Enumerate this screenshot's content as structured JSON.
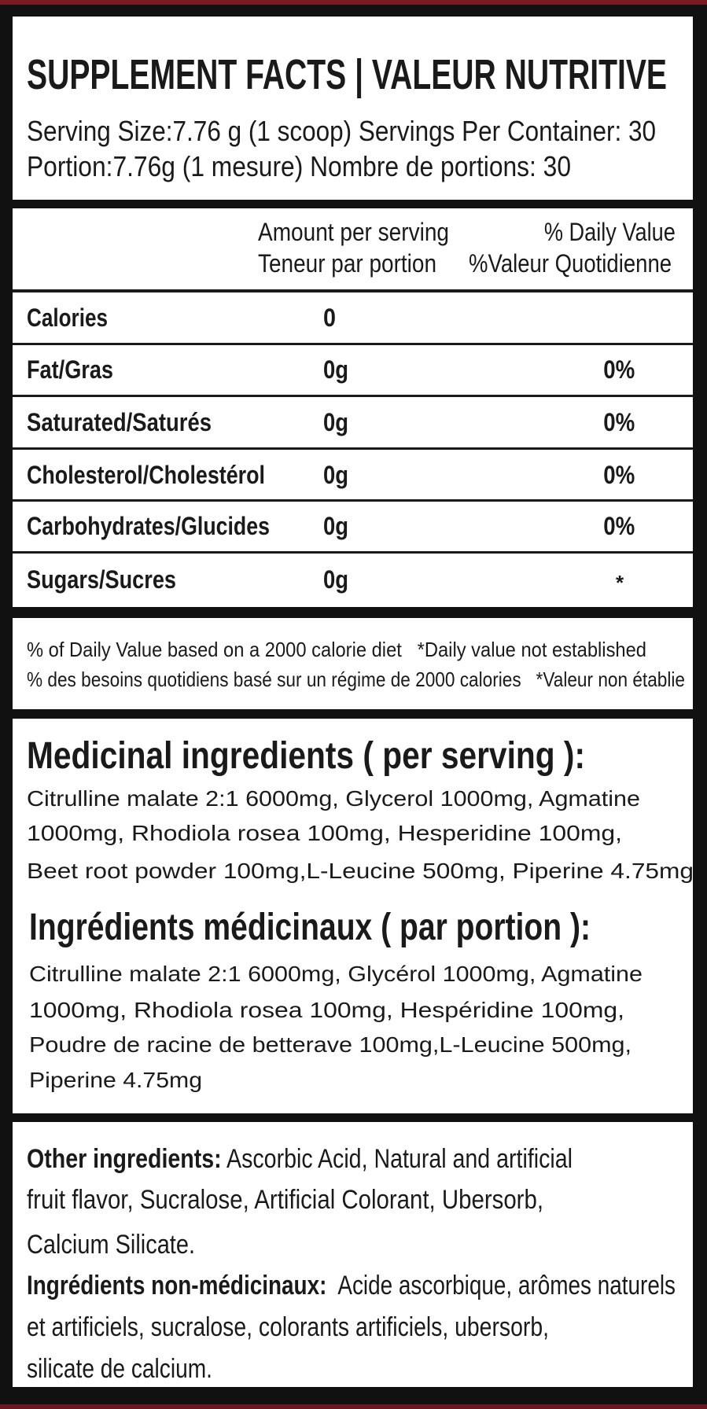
{
  "header": {
    "title": "SUPPLEMENT FACTS | VALEUR NUTRITIVE",
    "serving_en": "Serving Size:7.76 g (1 scoop) Servings Per Container: 30",
    "serving_fr": "Portion:7.76g (1 mesure) Nombre de portions: 30"
  },
  "table": {
    "amount_header_en": "Amount per serving",
    "amount_header_fr": "Teneur par portion",
    "dv_header_en": "% Daily Value",
    "dv_header_fr": "%Valeur Quotidienne",
    "rows": [
      {
        "name": "Calories",
        "amount": "0",
        "dv": ""
      },
      {
        "name": "Fat/Gras",
        "amount": "0g",
        "dv": "0%"
      },
      {
        "name": "Saturated/Saturés",
        "amount": "0g",
        "dv": "0%"
      },
      {
        "name": "Cholesterol/Cholestérol",
        "amount": "0g",
        "dv": "0%"
      },
      {
        "name": "Carbohydrates/Glucides",
        "amount": "0g",
        "dv": "0%"
      },
      {
        "name": "Sugars/Sucres",
        "amount": "0g",
        "dv": "*"
      }
    ]
  },
  "footnote": {
    "en": "% of Daily Value based on a 2000 calorie diet   *Daily value not established",
    "fr": "% des besoins quotidiens basé sur un régime de 2000 calories   *Valeur non établie"
  },
  "medicinal": {
    "heading_en": "Medicinal ingredients ( per serving ):",
    "lines_en": [
      "Citrulline malate 2:1 6000mg, Glycerol 1000mg, Agmatine",
      "1000mg, Rhodiola rosea 100mg, Hesperidine 100mg,",
      "Beet root powder 100mg,L-Leucine 500mg, Piperine 4.75mg"
    ],
    "heading_fr": "Ingrédients médicinaux ( par portion ):",
    "lines_fr": [
      "Citrulline malate 2:1 6000mg, Glycérol 1000mg, Agmatine",
      "1000mg, Rhodiola rosea 100mg, Hespéridine 100mg,",
      "Poudre de racine de betterave 100mg,L-Leucine 500mg,",
      "Piperine 4.75mg"
    ]
  },
  "other": {
    "label_en": "Other ingredients:",
    "lines_en": [
      " Ascorbic Acid, Natural and artificial",
      "fruit flavor, Sucralose, Artificial Colorant, Ubersorb,",
      "Calcium Silicate."
    ],
    "label_fr": "Ingrédients non-médicinaux:",
    "lines_fr": [
      "  Acide ascorbique, arômes naturels",
      "et artificiels, sucralose, colorants artificiels, ubersorb,",
      "silicate de calcium."
    ]
  },
  "colors": {
    "frame": "#111111",
    "accent": "#7a1a22",
    "panel": "#ffffff",
    "text": "#1a1a1a"
  }
}
